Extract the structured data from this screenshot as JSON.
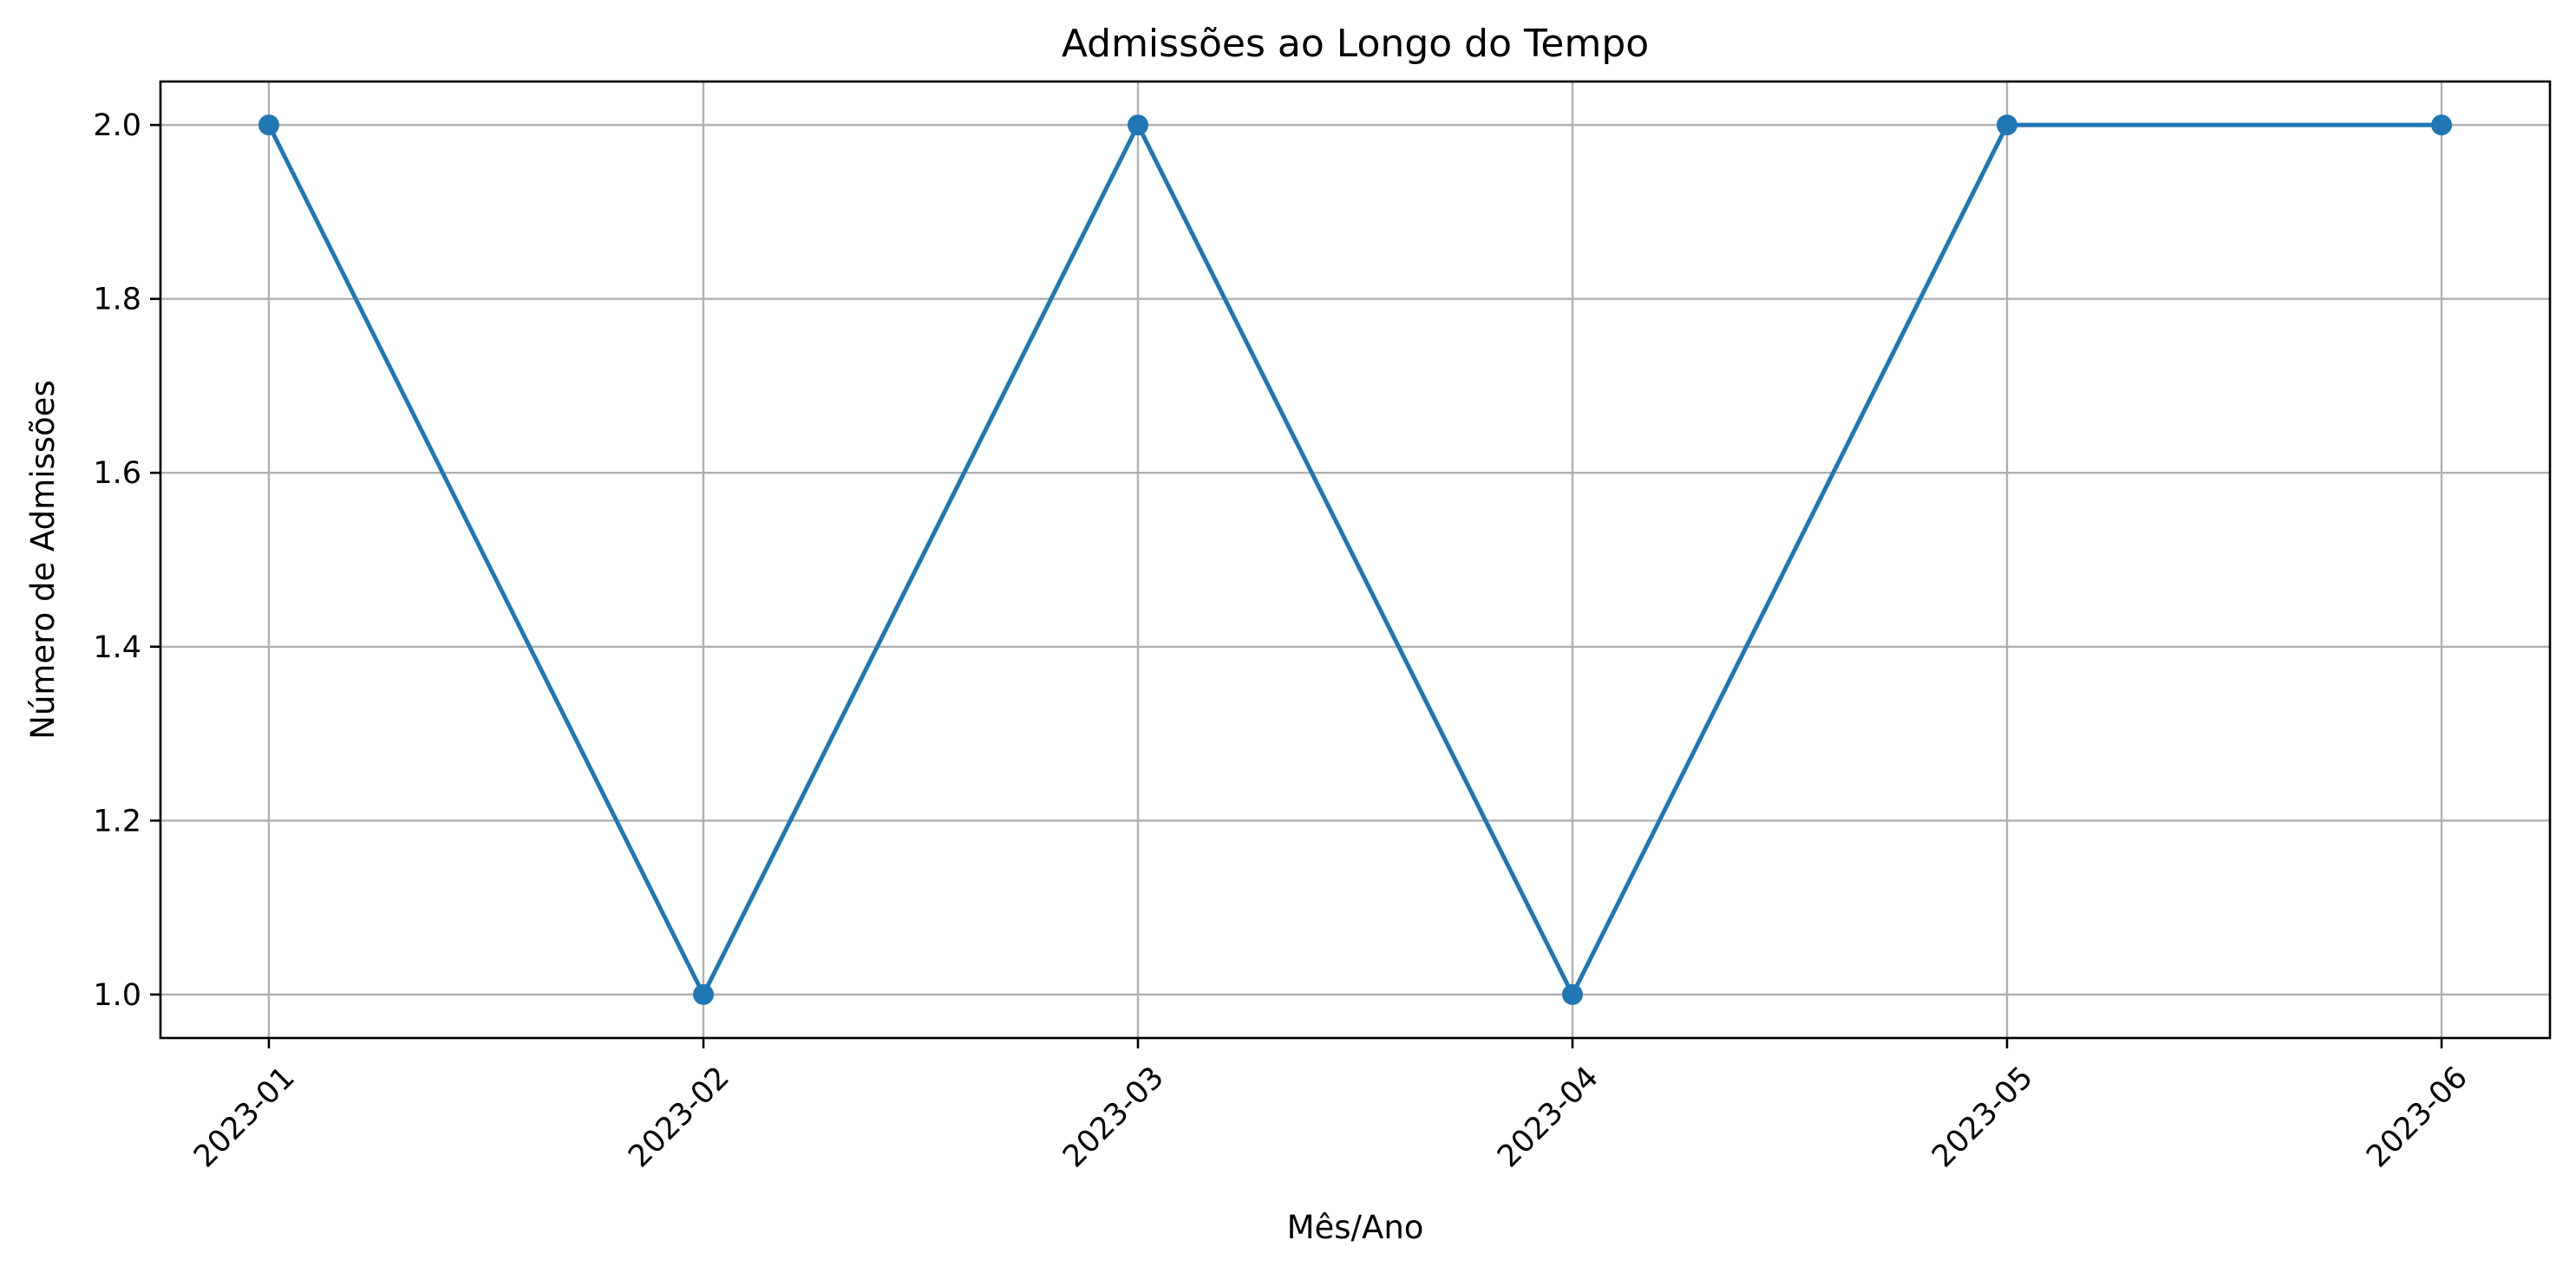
{
  "chart_data": {
    "type": "line",
    "title": "Admissões ao Longo do Tempo",
    "xlabel": "Mês/Ano",
    "ylabel": "Número de Admissões",
    "x": [
      "2023-01",
      "2023-02",
      "2023-03",
      "2023-04",
      "2023-05",
      "2023-06"
    ],
    "series": [
      {
        "values": [
          2,
          1,
          2,
          1,
          2,
          2
        ],
        "color": "#1f77b4",
        "marker": "circle"
      }
    ],
    "ylim": [
      0.95,
      2.05
    ],
    "yticks": [
      "1.0",
      "1.2",
      "1.4",
      "1.6",
      "1.8",
      "2.0"
    ],
    "grid": true,
    "x_tick_rotation_deg": 45
  }
}
